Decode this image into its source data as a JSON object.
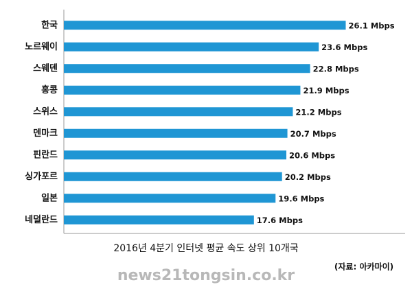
{
  "chart_data": {
    "type": "bar",
    "orientation": "horizontal",
    "categories": [
      "한국",
      "노르웨이",
      "스웨덴",
      "홍콩",
      "스위스",
      "덴마크",
      "핀란드",
      "싱가포르",
      "일본",
      "네덜란드"
    ],
    "values": [
      26.1,
      23.6,
      22.8,
      21.9,
      21.2,
      20.7,
      20.6,
      20.2,
      19.6,
      17.6
    ],
    "value_labels": [
      "26.1 Mbps",
      "23.6 Mbps",
      "22.8 Mbps",
      "21.9 Mbps",
      "21.2 Mbps",
      "20.7 Mbps",
      "20.6 Mbps",
      "20.2 Mbps",
      "19.6 Mbps",
      "17.6 Mbps"
    ],
    "color": "#1f96d4",
    "xlim": [
      0,
      31.6
    ],
    "x_label": "2016년 4분기 인터넷 평균 속도 상위 10개국",
    "source": "(자료: 아카마이)",
    "watermark": "news21tongsin.co.kr"
  }
}
